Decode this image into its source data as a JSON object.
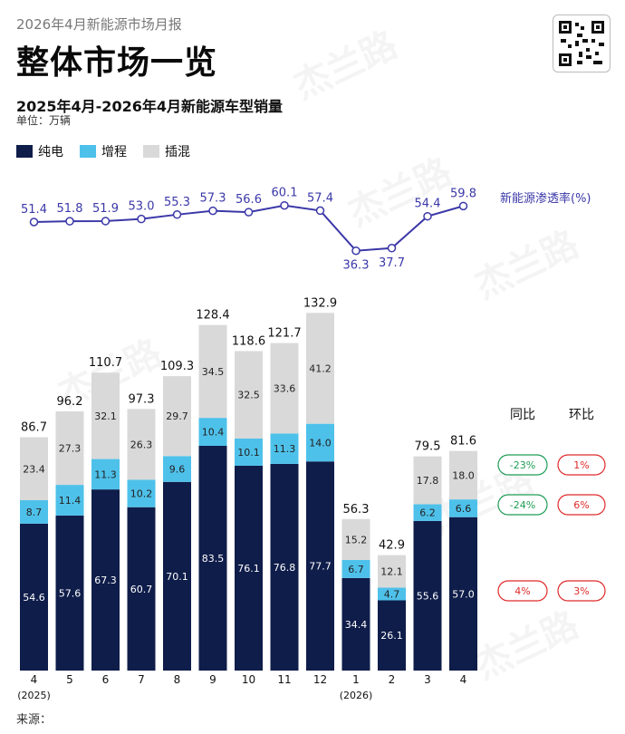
{
  "header": {
    "report_label": "2026年4月新能源市场月报",
    "title": "整体市场一览",
    "subtitle": "2025年4月-2026年4月新能源车型销量",
    "unit": "单位：万辆",
    "source": "来源："
  },
  "watermark": "杰兰路",
  "colors": {
    "bev": "#0f1d4a",
    "erev": "#4ec1ea",
    "phev": "#d9d9d9",
    "line": "#3b38a8",
    "yoy_up": "#1f9d55",
    "mom_red": "#e02a2a"
  },
  "chart_data": {
    "type": "bar",
    "stacked": true,
    "categories": [
      "4",
      "5",
      "6",
      "7",
      "8",
      "9",
      "10",
      "11",
      "12",
      "1",
      "2",
      "3",
      "4"
    ],
    "year_labels": [
      {
        "index": 0,
        "text": "(2025)"
      },
      {
        "index": 9,
        "text": "(2026)"
      }
    ],
    "series": [
      {
        "name": "纯电",
        "color_key": "bev",
        "values": [
          54.6,
          57.6,
          67.3,
          60.7,
          70.1,
          83.5,
          76.1,
          76.8,
          77.7,
          34.4,
          26.1,
          55.6,
          57.0
        ]
      },
      {
        "name": "增程",
        "color_key": "erev",
        "values": [
          8.7,
          11.4,
          11.3,
          10.2,
          9.6,
          10.4,
          10.1,
          11.3,
          14.0,
          6.7,
          4.7,
          6.2,
          6.6
        ]
      },
      {
        "name": "插混",
        "color_key": "phev",
        "values": [
          23.4,
          27.3,
          32.1,
          26.3,
          29.7,
          34.5,
          32.5,
          33.6,
          41.2,
          15.2,
          12.1,
          17.8,
          18.0
        ]
      }
    ],
    "totals": [
      86.7,
      96.2,
      110.7,
      97.3,
      109.3,
      128.4,
      118.6,
      121.7,
      132.9,
      56.3,
      42.9,
      79.5,
      81.6
    ],
    "penetration": {
      "name": "新能源渗透率(%)",
      "values": [
        51.4,
        51.8,
        51.9,
        53.0,
        55.3,
        57.3,
        56.6,
        60.1,
        57.4,
        36.3,
        37.7,
        54.4,
        59.8
      ]
    },
    "comparison": {
      "headers": {
        "yoy": "同比",
        "mom": "环比"
      },
      "rows": [
        {
          "series": "插混",
          "yoy": "-23%",
          "mom": "1%"
        },
        {
          "series": "增程",
          "yoy": "-24%",
          "mom": "6%"
        },
        {
          "series": "纯电",
          "yoy": "4%",
          "mom": "3%"
        }
      ]
    }
  }
}
